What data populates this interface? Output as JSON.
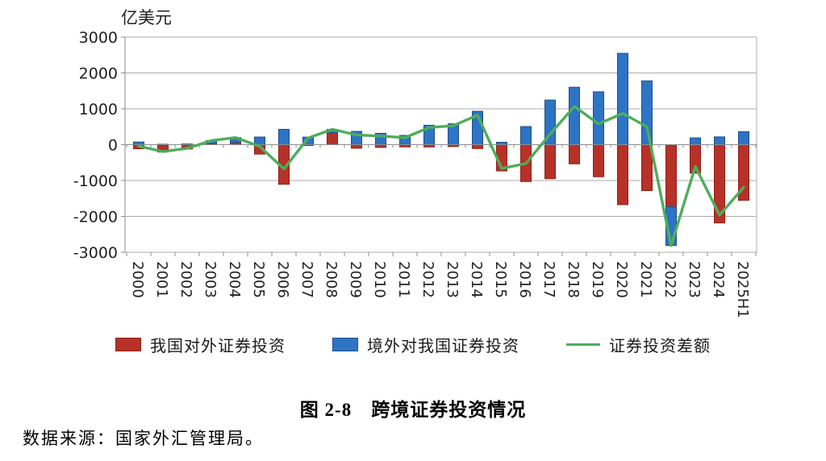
{
  "unit_label": "亿美元",
  "caption": "图 2-8　跨境证券投资情况",
  "source": "数据来源：国家外汇管理局。",
  "legend": {
    "outward_label": "我国对外证券投资",
    "inbound_label": "境外对我国证券投资",
    "balance_label": "证券投资差额"
  },
  "colors": {
    "outward_fill": "#B73128",
    "outward_border": "#911F17",
    "inbound_fill": "#2E74C5",
    "inbound_border": "#1F4E8C",
    "balance_line": "#4EAD5B",
    "gridline": "#ABABAB",
    "axis": "#8C8C8C",
    "tick_text": "#1F1F1F"
  },
  "chart_data": {
    "type": "bar",
    "subtype": "stacked bars with line overlay",
    "ylabel": "亿美元",
    "ylim": [
      -3000,
      3000
    ],
    "ytick_step": 1000,
    "grid": true,
    "legend_position": "bottom",
    "categories": [
      "2000",
      "2001",
      "2002",
      "2003",
      "2004",
      "2005",
      "2006",
      "2007",
      "2008",
      "2009",
      "2010",
      "2011",
      "2012",
      "2013",
      "2014",
      "2015",
      "2016",
      "2017",
      "2018",
      "2019",
      "2020",
      "2021",
      "2022",
      "2023",
      "2024",
      "2025H1"
    ],
    "series": [
      {
        "name": "我国对外证券投资",
        "type": "bar",
        "color": "#B73128",
        "values": [
          -113,
          -206,
          -121,
          30,
          65,
          -262,
          -1104,
          -23,
          327,
          -99,
          -76,
          -62,
          -64,
          -53,
          -108,
          -732,
          -1028,
          -949,
          -535,
          -894,
          -1673,
          -1281,
          -1732,
          -795,
          -2182,
          -1551
        ]
      },
      {
        "name": "境外对我国证券投资",
        "type": "bar",
        "color": "#2E74C5",
        "values": [
          74,
          12,
          18,
          84,
          132,
          213,
          428,
          210,
          99,
          370,
          317,
          258,
          542,
          582,
          932,
          67,
          505,
          1244,
          1602,
          1474,
          2547,
          1779,
          -1079,
          189,
          217,
          363
        ]
      },
      {
        "name": "证券投资差额",
        "type": "line",
        "color": "#4EAD5B",
        "values": [
          -40,
          -194,
          -103,
          114,
          197,
          -49,
          -676,
          187,
          427,
          271,
          240,
          196,
          478,
          529,
          824,
          -665,
          -523,
          295,
          1067,
          579,
          873,
          498,
          -2811,
          -606,
          -1965,
          -1188
        ]
      }
    ]
  }
}
